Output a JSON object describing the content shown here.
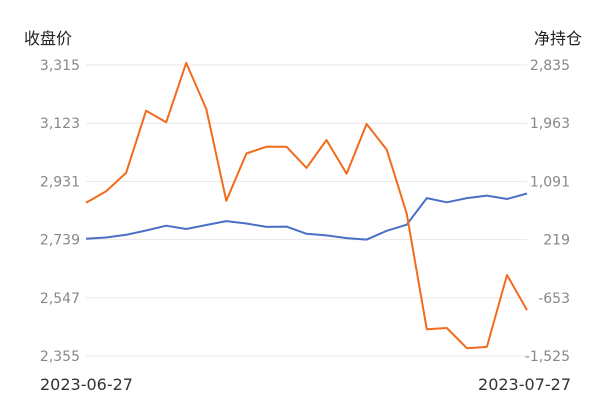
{
  "chart_data": {
    "type": "line",
    "left_axis_title": "收盘价",
    "right_axis_title": "净持仓",
    "left_ticks": [
      "3,315",
      "3,123",
      "2,931",
      "2,739",
      "2,547",
      "2,355"
    ],
    "right_ticks": [
      "2,835",
      "1,963",
      "1,091",
      "219",
      "-653",
      "-1,525"
    ],
    "left_ylim": [
      2355,
      3315
    ],
    "right_ylim": [
      -1525,
      2835
    ],
    "x_start_label": "2023-06-27",
    "x_end_label": "2023-07-27",
    "grid": true,
    "series": [
      {
        "axis": "left",
        "color": "#4a6fc7",
        "values": [
          2742,
          2746,
          2755,
          2769,
          2785,
          2774,
          2787,
          2800,
          2792,
          2781,
          2782,
          2758,
          2753,
          2744,
          2739,
          2768,
          2788,
          2876,
          2862,
          2876,
          2884,
          2873,
          2891
        ]
      },
      {
        "axis": "right",
        "color": "#f26b1d",
        "values": [
          771,
          941,
          1218,
          2150,
          1977,
          2866,
          2176,
          800,
          1509,
          1611,
          1611,
          1294,
          1711,
          1207,
          1951,
          1567,
          608,
          -1125,
          -1105,
          -1408,
          -1388,
          -312,
          -838
        ]
      }
    ]
  }
}
